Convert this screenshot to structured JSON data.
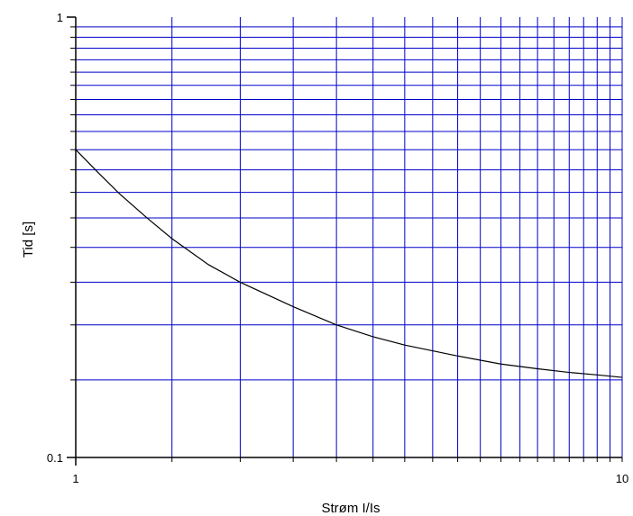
{
  "chart_data": {
    "type": "line",
    "title": "",
    "xlabel": "Strøm I/Is",
    "ylabel": "Tid [s]",
    "x_scale": "log",
    "y_scale": "log",
    "xlim": [
      1,
      10
    ],
    "ylim": [
      0.1,
      1
    ],
    "x_tick_labels": [
      {
        "value": 1,
        "label": "1"
      },
      {
        "value": 10,
        "label": "10"
      }
    ],
    "y_tick_labels": [
      {
        "value": 0.1,
        "label": "0.1"
      },
      {
        "value": 1,
        "label": "1"
      }
    ],
    "grid": true,
    "grid_color": "#0000cc",
    "x_grid_values": [
      1.5,
      2,
      2.5,
      3,
      3.5,
      4,
      4.5,
      5,
      5.5,
      6,
      6.5,
      7,
      7.5,
      8,
      8.5,
      9,
      9.5,
      10
    ],
    "y_grid_values": [
      0.15,
      0.2,
      0.25,
      0.3,
      0.35,
      0.4,
      0.45,
      0.5,
      0.55,
      0.6,
      0.65,
      0.7,
      0.75,
      0.8,
      0.85,
      0.9,
      0.95
    ],
    "line_color": "#000000",
    "series": [
      {
        "x": [
          1.0,
          1.1,
          1.2,
          1.35,
          1.5,
          1.75,
          2.0,
          2.5,
          3.0,
          3.5,
          4.0,
          5.0,
          6.0,
          7.0,
          8.0,
          9.0,
          10.0
        ],
        "y": [
          0.5,
          0.443,
          0.398,
          0.35,
          0.314,
          0.274,
          0.25,
          0.22,
          0.2,
          0.188,
          0.18,
          0.17,
          0.163,
          0.159,
          0.156,
          0.154,
          0.152
        ]
      }
    ]
  }
}
